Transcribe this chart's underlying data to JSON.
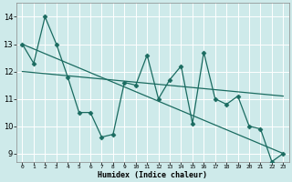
{
  "xlabel": "Humidex (Indice chaleur)",
  "xlim": [
    -0.5,
    23.5
  ],
  "ylim": [
    8.7,
    14.5
  ],
  "xticks": [
    0,
    1,
    2,
    3,
    4,
    5,
    6,
    7,
    8,
    9,
    10,
    11,
    12,
    13,
    14,
    15,
    16,
    17,
    18,
    19,
    20,
    21,
    22,
    23
  ],
  "yticks": [
    9,
    10,
    11,
    12,
    13,
    14
  ],
  "bg_color": "#ceeaea",
  "line_color": "#1a6b60",
  "grid_color": "#ffffff",
  "line1_x": [
    0,
    1,
    2,
    3,
    4,
    5,
    6,
    7,
    8,
    9,
    10,
    11,
    12,
    13,
    14,
    15,
    16,
    17,
    18,
    19,
    20,
    21,
    22,
    23
  ],
  "line1_y": [
    13.0,
    12.3,
    14.0,
    13.0,
    11.8,
    10.5,
    10.5,
    9.6,
    9.7,
    11.6,
    11.5,
    12.6,
    11.0,
    11.7,
    12.2,
    10.1,
    12.7,
    11.0,
    10.8,
    11.1,
    10.0,
    9.9,
    8.7,
    9.0
  ],
  "line2_x": [
    0,
    23
  ],
  "line2_y": [
    13.0,
    9.0
  ],
  "line3_x": [
    0,
    23
  ],
  "line3_y": [
    12.0,
    11.1
  ],
  "marker": "D",
  "markersize": 2.5,
  "linewidth": 0.9
}
